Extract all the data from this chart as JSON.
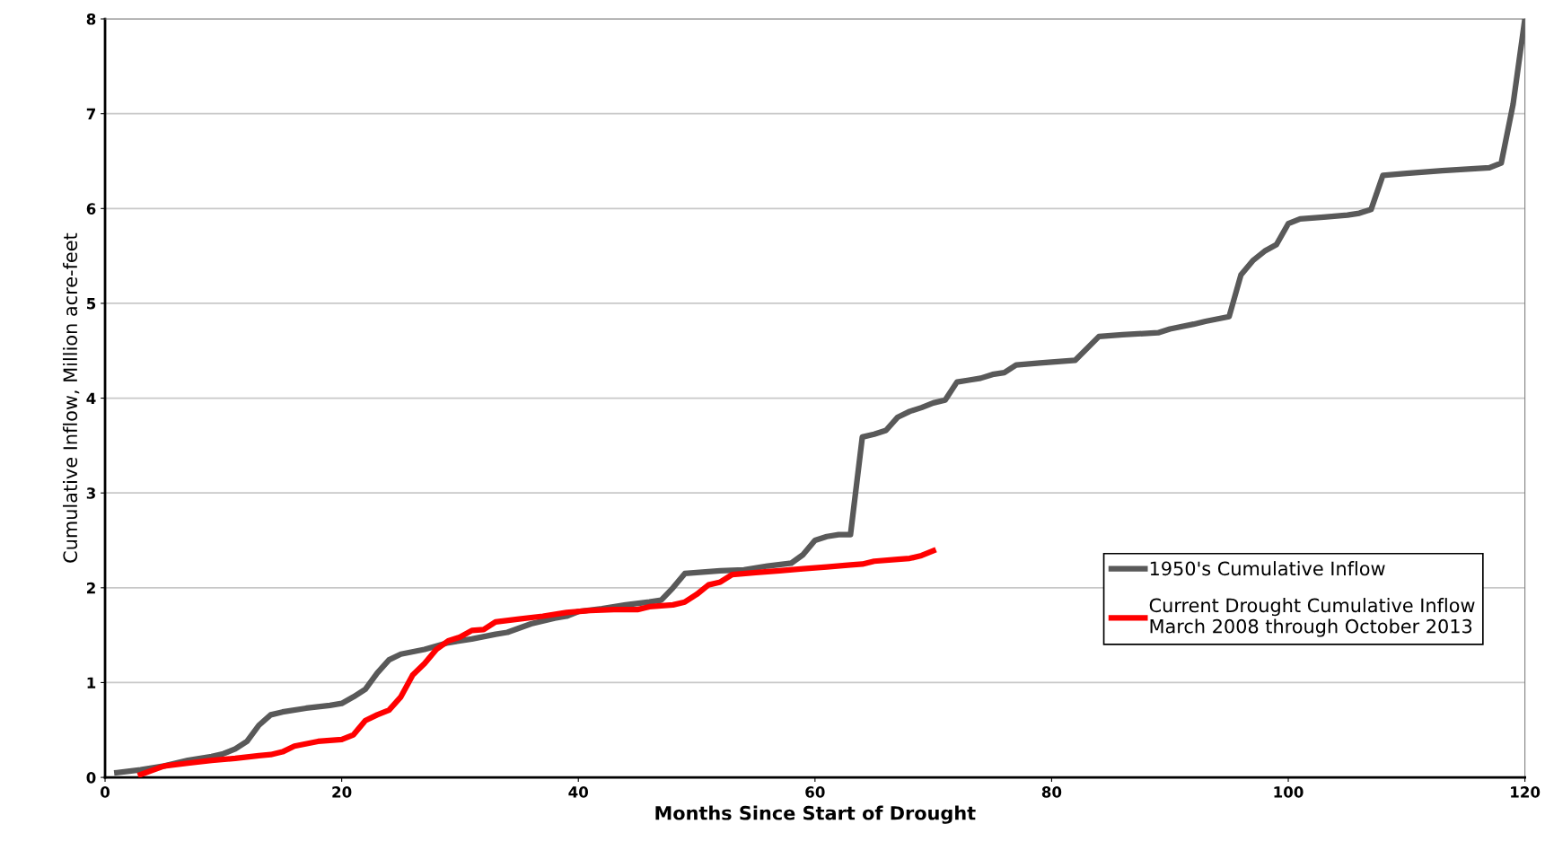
{
  "chart_data": {
    "type": "line",
    "xlabel": "Months Since Start of Drought",
    "ylabel": "Cumulative Inflow, Million acre-feet",
    "xlim": [
      0,
      120
    ],
    "xticks": [
      0,
      20,
      40,
      60,
      80,
      100,
      120
    ],
    "ylim": [
      0,
      8
    ],
    "yticks": [
      0,
      1,
      2,
      3,
      4,
      5,
      6,
      7,
      8
    ],
    "grid": "y",
    "legend": "right",
    "marker": "none",
    "line_style": "solid",
    "series": [
      {
        "name": "1950's Cumulative Inflow",
        "color": "#595959",
        "x": [
          1,
          3,
          5,
          7,
          9,
          10,
          11,
          12,
          13,
          14,
          15,
          17,
          19,
          20,
          21,
          22,
          23,
          24,
          25,
          27,
          29,
          31,
          33,
          34,
          36,
          38,
          39,
          40,
          42,
          44,
          46,
          47,
          48,
          49,
          50,
          52,
          54,
          56,
          58,
          59,
          60,
          61,
          62,
          63,
          64,
          65,
          66,
          67,
          68,
          69,
          70,
          71,
          72,
          73,
          74,
          75,
          76,
          77,
          79,
          82,
          84,
          86,
          89,
          90,
          92,
          93,
          95,
          96,
          97,
          98,
          99,
          100,
          101,
          103,
          105,
          106,
          107,
          108,
          110,
          113,
          117,
          118,
          119,
          120
        ],
        "values": [
          0.05,
          0.08,
          0.12,
          0.18,
          0.22,
          0.25,
          0.3,
          0.38,
          0.55,
          0.66,
          0.69,
          0.73,
          0.76,
          0.78,
          0.85,
          0.93,
          1.1,
          1.24,
          1.3,
          1.35,
          1.42,
          1.46,
          1.51,
          1.53,
          1.62,
          1.68,
          1.7,
          1.75,
          1.78,
          1.82,
          1.85,
          1.87,
          2.0,
          2.15,
          2.16,
          2.18,
          2.19,
          2.23,
          2.26,
          2.35,
          2.5,
          2.54,
          2.56,
          2.56,
          3.59,
          3.62,
          3.66,
          3.8,
          3.86,
          3.9,
          3.95,
          3.98,
          4.17,
          4.19,
          4.21,
          4.25,
          4.27,
          4.35,
          4.37,
          4.4,
          4.65,
          4.67,
          4.69,
          4.73,
          4.78,
          4.81,
          4.86,
          5.3,
          5.45,
          5.55,
          5.62,
          5.84,
          5.89,
          5.91,
          5.93,
          5.95,
          5.99,
          6.35,
          6.37,
          6.4,
          6.43,
          6.48,
          7.1,
          8.0
        ]
      },
      {
        "name": "Current Drought Cumulative Inflow\nMarch 2008 through October 2013",
        "color": "#ff0000",
        "x": [
          3,
          5,
          7,
          9,
          11,
          13,
          14,
          15,
          16,
          18,
          20,
          21,
          22,
          23,
          24,
          25,
          26,
          27,
          28,
          29,
          30,
          31,
          32,
          33,
          35,
          37,
          39,
          41,
          43,
          45,
          46,
          48,
          49,
          50,
          51,
          52,
          53,
          55,
          57,
          59,
          61,
          63,
          64,
          65,
          67,
          68,
          69,
          70
        ],
        "values": [
          0.03,
          0.12,
          0.15,
          0.18,
          0.2,
          0.23,
          0.24,
          0.27,
          0.33,
          0.38,
          0.4,
          0.45,
          0.6,
          0.66,
          0.71,
          0.85,
          1.08,
          1.2,
          1.35,
          1.44,
          1.48,
          1.55,
          1.56,
          1.64,
          1.67,
          1.7,
          1.74,
          1.76,
          1.77,
          1.77,
          1.8,
          1.82,
          1.85,
          1.93,
          2.03,
          2.06,
          2.14,
          2.16,
          2.18,
          2.2,
          2.22,
          2.24,
          2.25,
          2.28,
          2.3,
          2.31,
          2.34,
          2.39
        ]
      }
    ]
  }
}
